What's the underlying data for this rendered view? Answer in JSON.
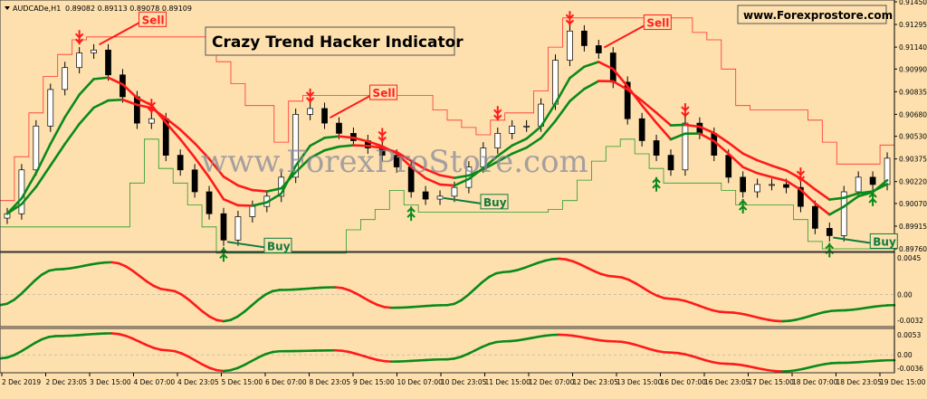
{
  "header": {
    "symbol": "AUDCADe,H1",
    "ohlc": "0.89082 0.89113 0.89078 0.89109"
  },
  "title": "Crazy Trend Hacker Indicator",
  "website": "www.Forexprostore.com",
  "watermark": "www.ForexProStore.com",
  "labels": {
    "sell": "Sell",
    "buy": "Buy"
  },
  "colors": {
    "background": "#fde0ae",
    "bull": "#0a8a1a",
    "bear": "#ff1a1a",
    "buy_label": "#107a40"
  },
  "chart_data": [
    {
      "type": "candlestick",
      "panel": "price",
      "price_axis_ticks": [
        "0.91450",
        "0.91295",
        "0.91140",
        "0.90990",
        "0.90835",
        "0.90680",
        "0.90530",
        "0.90375",
        "0.90220",
        "0.90070",
        "0.89915",
        "0.89760"
      ],
      "ylim": [
        0.8976,
        0.9145
      ],
      "time_axis_ticks": [
        "2 Dec 2019",
        "2 Dec 23:05",
        "3 Dec 15:00",
        "4 Dec 07:00",
        "4 Dec 23:05",
        "5 Dec 15:00",
        "6 Dec 07:00",
        "8 Dec 23:05",
        "9 Dec 15:00",
        "10 Dec 07:00",
        "10 Dec 23:05",
        "11 Dec 15:00",
        "12 Dec 07:00",
        "12 Dec 23:05",
        "13 Dec 15:00",
        "16 Dec 07:00",
        "16 Dec 23:05",
        "17 Dec 15:00",
        "18 Dec 07:00",
        "18 Dec 23:05",
        "19 Dec 15:00"
      ],
      "closes": [
        0.9,
        0.903,
        0.906,
        0.9085,
        0.91,
        0.911,
        0.9112,
        0.9095,
        0.908,
        0.9062,
        0.9065,
        0.904,
        0.903,
        0.9015,
        0.9,
        0.8982,
        0.8998,
        0.9005,
        0.9012,
        0.9025,
        0.9068,
        0.9072,
        0.9062,
        0.9055,
        0.905,
        0.9045,
        0.904,
        0.9032,
        0.9015,
        0.901,
        0.9012,
        0.9018,
        0.9032,
        0.9045,
        0.9055,
        0.906,
        0.906,
        0.9075,
        0.9105,
        0.9125,
        0.9115,
        0.911,
        0.909,
        0.9065,
        0.905,
        0.904,
        0.903,
        0.9062,
        0.9055,
        0.904,
        0.9025,
        0.9015,
        0.902,
        0.902,
        0.9018,
        0.9005,
        0.899,
        0.8985,
        0.9015,
        0.9025,
        0.902,
        0.9038
      ],
      "sell_signal_bars": [
        5,
        10,
        21,
        26,
        34,
        39,
        47,
        55
      ],
      "buy_signal_bars": [
        15,
        28,
        45,
        51,
        57,
        60
      ],
      "sell_labels_at_bars": [
        6,
        22,
        41
      ],
      "buy_labels_at_bars": [
        15,
        30,
        57
      ]
    },
    {
      "type": "line",
      "panel": "oscillator-1",
      "axis_ticks": [
        "0.0045",
        "0.00",
        "-0.0032"
      ],
      "ylim": [
        -0.0032,
        0.0045
      ],
      "values": [
        -0.0012,
        0.0028,
        0.0036,
        0.0005,
        -0.003,
        0.0005,
        0.0008,
        -0.0015,
        -0.0012,
        0.0025,
        0.004,
        0.002,
        -0.0005,
        -0.002,
        -0.003,
        -0.0018,
        -0.0012
      ]
    },
    {
      "type": "line",
      "panel": "oscillator-2",
      "axis_ticks": [
        "0.0053",
        "0.00",
        "-0.0036"
      ],
      "ylim": [
        -0.0036,
        0.0053
      ],
      "values": [
        -0.0008,
        0.0042,
        0.0048,
        0.001,
        -0.0036,
        0.0008,
        0.001,
        -0.0015,
        -0.001,
        0.003,
        0.0045,
        0.003,
        0.0005,
        -0.002,
        -0.0037,
        -0.0018,
        -0.0012
      ]
    }
  ]
}
